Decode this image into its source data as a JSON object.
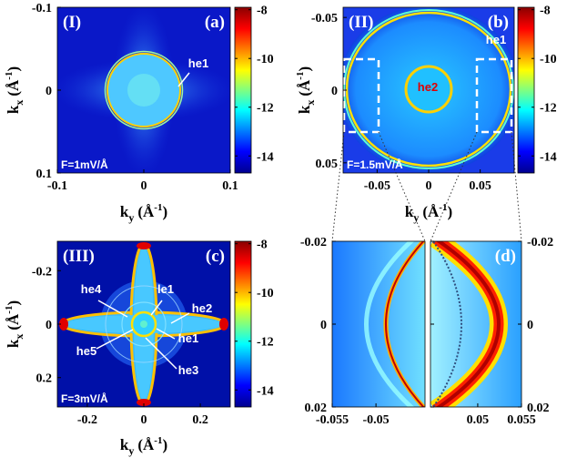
{
  "chart_data": [
    {
      "type": "heatmap",
      "region_label": "(I)",
      "panel_label": "(a)",
      "field_label": "F=1mV/Å",
      "xlabel": {
        "base": "k",
        "sub": "y",
        "unit": "(Å",
        "sup": "-1",
        "close": ")"
      },
      "ylabel": {
        "base": "k",
        "sub": "x",
        "unit": "(Å",
        "sup": "-1",
        "close": ")"
      },
      "xlim": [
        -0.1,
        0.1
      ],
      "xticks": [
        -0.1,
        0,
        0.1
      ],
      "ylim": [
        -0.1,
        0.1
      ],
      "yticks": [
        -0.1,
        0,
        0.1
      ],
      "y_inverted": true,
      "colorbar": {
        "colormap": "jet",
        "clim": [
          -14.7,
          -7.9
        ],
        "ticks": [
          -8,
          -10,
          -12,
          -14
        ]
      },
      "annotations": [
        "he1"
      ]
    },
    {
      "type": "heatmap",
      "region_label": "(II)",
      "panel_label": "(b)",
      "field_label": "F=1.5mV/Å",
      "xlabel": {
        "base": "k",
        "sub": "y",
        "unit": "(Å",
        "sup": "-1",
        "close": ")"
      },
      "ylabel": {
        "base": "k",
        "sub": "x",
        "unit": "(Å",
        "sup": "-1",
        "close": ")"
      },
      "xlim": [
        -0.083,
        0.083
      ],
      "xticks": [
        -0.05,
        0,
        0.05
      ],
      "ylim": [
        -0.057,
        0.057
      ],
      "yticks": [
        -0.05,
        0,
        0.05
      ],
      "y_inverted": true,
      "colorbar": {
        "colormap": "jet",
        "clim": [
          -14.7,
          -7.9
        ],
        "ticks": [
          -8,
          -10,
          -12,
          -14
        ]
      },
      "annotations": [
        "he1",
        "he2"
      ]
    },
    {
      "type": "heatmap",
      "region_label": "(III)",
      "panel_label": "(c)",
      "field_label": "F=3mV/Å",
      "xlabel": {
        "base": "k",
        "sub": "y",
        "unit": "(Å",
        "sup": "-1",
        "close": ")"
      },
      "ylabel": {
        "base": "k",
        "sub": "x",
        "unit": "(Å",
        "sup": "-1",
        "close": ")"
      },
      "xlim": [
        -0.306,
        0.306
      ],
      "xticks": [
        -0.2,
        0,
        0.2
      ],
      "ylim": [
        -0.31,
        0.31
      ],
      "yticks": [
        -0.2,
        0,
        0.2
      ],
      "y_inverted": true,
      "colorbar": {
        "colormap": "jet",
        "clim": [
          -14.7,
          -7.9
        ],
        "ticks": [
          -8,
          -10,
          -12,
          -14
        ]
      },
      "annotations": [
        "he4",
        "le1",
        "he2",
        "he5",
        "he1",
        "he3"
      ]
    },
    {
      "type": "heatmap-zoom",
      "panel_label": "(d)",
      "ylim": [
        -0.02,
        0.02
      ],
      "yticks": [
        -0.02,
        0,
        0.02
      ],
      "y_inverted": true,
      "panels": [
        {
          "xlim": [
            -0.055,
            -0.0444
          ],
          "xticks": [
            -0.055,
            -0.05
          ]
        },
        {
          "xlim": [
            0.0446,
            0.055
          ],
          "xticks": [
            0.05,
            0.055
          ]
        }
      ]
    }
  ]
}
